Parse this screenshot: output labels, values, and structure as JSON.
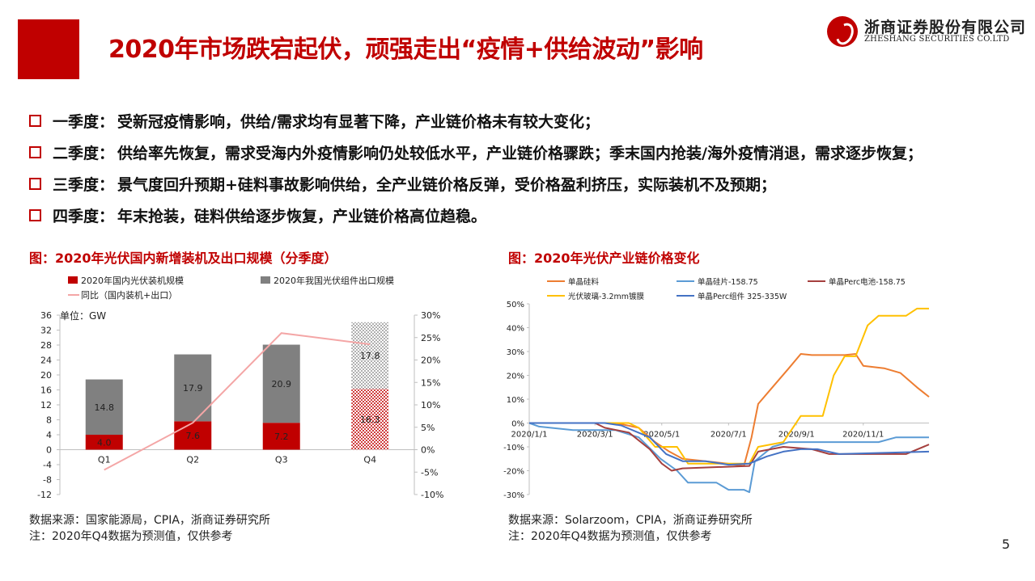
{
  "header": {
    "title": "2020年市场跌宕起伏，顽强走出“疫情+供给波动”影响",
    "logo_cn": "浙商证券股份有限公司",
    "logo_en": "ZHESHANG SECURITIES CO.LTD"
  },
  "bullets": [
    {
      "label": "一季度：",
      "text": "受新冠疫情影响，供给/需求均有显著下降，产业链价格未有较大变化；"
    },
    {
      "label": "二季度：",
      "text": "供给率先恢复，需求受海内外疫情影响仍处较低水平，产业链价格骤跌；季末国内抢装/海外疫情消退，需求逐步恢复；"
    },
    {
      "label": "三季度：",
      "text": "景气度回升预期+硅料事故影响供给，全产业链价格反弹，受价格盈利挤压，实际装机不及预期；"
    },
    {
      "label": "四季度：",
      "text": "年末抢装，硅料供给逐步恢复，产业链价格高位趋稳。"
    }
  ],
  "charts": {
    "left": {
      "caption": "图：2020年光伏国内新增装机及出口规模（分季度）",
      "source": "数据来源：国家能源局，CPIA，浙商证券研究所",
      "note": "注：2020年Q4数据为预测值，仅供参考",
      "unit": "单位：GW"
    },
    "right": {
      "caption": "图：2020年光伏产业链价格变化",
      "source": "数据来源：Solarzoom，CPIA，浙商证券研究所",
      "note": "注：2020年Q4数据为预测值，仅供参考"
    }
  },
  "page_number": "5",
  "chart_data": [
    {
      "type": "bar",
      "stacked": true,
      "categories": [
        "Q1",
        "Q2",
        "Q3",
        "Q4"
      ],
      "series": [
        {
          "name": "2020年国内光伏装机规模",
          "values": [
            4.0,
            7.6,
            7.2,
            16.3
          ],
          "color": "#c00000",
          "pattern_last": true
        },
        {
          "name": "2020年我国光伏组件出口规模",
          "values": [
            14.8,
            17.9,
            20.9,
            17.8
          ],
          "color": "#808080",
          "pattern_last": true
        }
      ],
      "line": {
        "name": "同比（国内装机+出口）",
        "values": [
          -0.045,
          0.06,
          0.26,
          0.235
        ],
        "color": "#f4a6a6"
      },
      "data_labels": {
        "bottom": [
          "4.0",
          "7.6",
          "7.2",
          "16.3"
        ],
        "top": [
          "14.8",
          "17.9",
          "20.9",
          "17.8"
        ]
      },
      "ylim": [
        -12,
        36
      ],
      "yticks": [
        -12,
        -8,
        -4,
        0,
        4,
        8,
        12,
        16,
        20,
        24,
        28,
        32,
        36
      ],
      "y2lim": [
        -0.1,
        0.3
      ],
      "y2ticks": [
        "-10%",
        "-5%",
        "0%",
        "5%",
        "10%",
        "15%",
        "20%",
        "25%",
        "30%"
      ],
      "legend": "top"
    },
    {
      "type": "line",
      "x_range": [
        "2020-01-01",
        "2020-12-31"
      ],
      "xticks": [
        "2020/1/1",
        "2020/3/1",
        "2020/5/1",
        "2020/7/1",
        "2020/9/1",
        "2020/11/1"
      ],
      "xtick_dates": [
        "2020-01-01",
        "2020-03-01",
        "2020-05-01",
        "2020-07-01",
        "2020-09-01",
        "2020-11-01"
      ],
      "ylim": [
        -0.3,
        0.5
      ],
      "yticks": [
        "-30%",
        "-20%",
        "-10%",
        "0%",
        "10%",
        "20%",
        "30%",
        "40%",
        "50%"
      ],
      "legend": "top",
      "series": [
        {
          "name": "单晶硅料",
          "color": "#ed7d31",
          "points": [
            [
              "2020-01-01",
              0
            ],
            [
              "2020-03-20",
              0
            ],
            [
              "2020-04-10",
              -0.02
            ],
            [
              "2020-04-25",
              -0.08
            ],
            [
              "2020-05-08",
              -0.12
            ],
            [
              "2020-05-20",
              -0.15
            ],
            [
              "2020-06-10",
              -0.16
            ],
            [
              "2020-06-30",
              -0.17
            ],
            [
              "2020-07-15",
              -0.18
            ],
            [
              "2020-07-22",
              -0.06
            ],
            [
              "2020-07-28",
              0.08
            ],
            [
              "2020-08-10",
              0.15
            ],
            [
              "2020-08-25",
              0.23
            ],
            [
              "2020-09-05",
              0.29
            ],
            [
              "2020-09-15",
              0.285
            ],
            [
              "2020-10-15",
              0.285
            ],
            [
              "2020-10-25",
              0.29
            ],
            [
              "2020-11-01",
              0.24
            ],
            [
              "2020-11-20",
              0.23
            ],
            [
              "2020-12-05",
              0.21
            ],
            [
              "2020-12-20",
              0.15
            ],
            [
              "2020-12-31",
              0.11
            ]
          ]
        },
        {
          "name": "单晶硅片-158.75",
          "color": "#5b9bd5",
          "points": [
            [
              "2020-01-01",
              0
            ],
            [
              "2020-01-10",
              -0.015
            ],
            [
              "2020-02-10",
              -0.03
            ],
            [
              "2020-03-20",
              -0.03
            ],
            [
              "2020-04-10",
              -0.06
            ],
            [
              "2020-04-30",
              -0.15
            ],
            [
              "2020-05-15",
              -0.2
            ],
            [
              "2020-05-25",
              -0.25
            ],
            [
              "2020-06-20",
              -0.25
            ],
            [
              "2020-07-01",
              -0.28
            ],
            [
              "2020-07-15",
              -0.28
            ],
            [
              "2020-07-20",
              -0.29
            ],
            [
              "2020-07-25",
              -0.16
            ],
            [
              "2020-08-10",
              -0.1
            ],
            [
              "2020-08-25",
              -0.08
            ],
            [
              "2020-11-15",
              -0.08
            ],
            [
              "2020-12-01",
              -0.06
            ],
            [
              "2020-12-31",
              -0.06
            ]
          ]
        },
        {
          "name": "单晶Perc电池-158.75",
          "color": "#a5403e",
          "points": [
            [
              "2020-01-01",
              0
            ],
            [
              "2020-03-01",
              0
            ],
            [
              "2020-03-10",
              -0.02
            ],
            [
              "2020-04-01",
              -0.04
            ],
            [
              "2020-04-20",
              -0.11
            ],
            [
              "2020-05-01",
              -0.17
            ],
            [
              "2020-05-10",
              -0.2
            ],
            [
              "2020-05-20",
              -0.19
            ],
            [
              "2020-07-20",
              -0.18
            ],
            [
              "2020-07-28",
              -0.12
            ],
            [
              "2020-08-20",
              -0.1
            ],
            [
              "2020-09-15",
              -0.11
            ],
            [
              "2020-10-01",
              -0.13
            ],
            [
              "2020-12-10",
              -0.13
            ],
            [
              "2020-12-31",
              -0.09
            ]
          ]
        },
        {
          "name": "光伏玻璃-3.2mm镀膜",
          "color": "#ffc000",
          "points": [
            [
              "2020-01-01",
              0
            ],
            [
              "2020-04-01",
              0
            ],
            [
              "2020-04-10",
              -0.02
            ],
            [
              "2020-04-25",
              -0.1
            ],
            [
              "2020-05-15",
              -0.1
            ],
            [
              "2020-05-25",
              -0.17
            ],
            [
              "2020-07-20",
              -0.17
            ],
            [
              "2020-07-28",
              -0.1
            ],
            [
              "2020-08-20",
              -0.08
            ],
            [
              "2020-09-05",
              0.03
            ],
            [
              "2020-09-25",
              0.03
            ],
            [
              "2020-10-05",
              0.2
            ],
            [
              "2020-10-15",
              0.28
            ],
            [
              "2020-10-25",
              0.28
            ],
            [
              "2020-11-05",
              0.41
            ],
            [
              "2020-11-15",
              0.45
            ],
            [
              "2020-12-10",
              0.45
            ],
            [
              "2020-12-20",
              0.48
            ],
            [
              "2020-12-31",
              0.48
            ]
          ]
        },
        {
          "name": "单晶Perc组件 325-335W",
          "color": "#4472c4",
          "points": [
            [
              "2020-01-01",
              0
            ],
            [
              "2020-02-01",
              0
            ],
            [
              "2020-03-10",
              0
            ],
            [
              "2020-03-25",
              -0.01
            ],
            [
              "2020-04-20",
              -0.06
            ],
            [
              "2020-05-05",
              -0.13
            ],
            [
              "2020-05-20",
              -0.16
            ],
            [
              "2020-06-10",
              -0.16
            ],
            [
              "2020-07-01",
              -0.175
            ],
            [
              "2020-07-20",
              -0.17
            ],
            [
              "2020-08-05",
              -0.14
            ],
            [
              "2020-08-20",
              -0.12
            ],
            [
              "2020-09-05",
              -0.11
            ],
            [
              "2020-09-20",
              -0.11
            ],
            [
              "2020-10-10",
              -0.13
            ],
            [
              "2020-12-31",
              -0.12
            ]
          ]
        }
      ]
    }
  ]
}
